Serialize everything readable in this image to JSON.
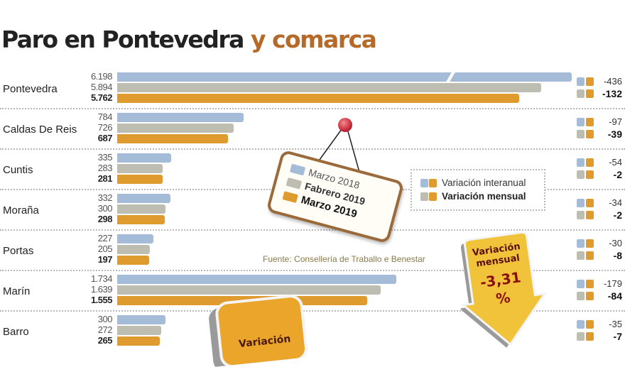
{
  "title": {
    "part1": "Paro en Pontevedra",
    "part2": "y comarca"
  },
  "legend": {
    "series": [
      "Marzo 2018",
      "Fabrero 2019",
      "Marzo 2019"
    ],
    "variation": [
      "Variación interanual",
      "Variación mensual"
    ]
  },
  "source": "Fuente: Consellería de Traballo e Benestar",
  "callout": {
    "label": "Variación mensual",
    "label_line1": "Variación",
    "label_line2": "mensual",
    "value": "-3,31",
    "unit": "%"
  },
  "callout2": {
    "label_line1": "Variación"
  },
  "colors": {
    "marzo2018": "#a5bcd9",
    "febrero2019": "#bdbdb1",
    "marzo2019": "#e09b2f",
    "title_accent": "#b66a2a"
  },
  "chart_data": {
    "type": "bar",
    "orientation": "horizontal",
    "title": "Paro en Pontevedra y comarca",
    "categories": [
      "Pontevedra",
      "Caldas De Reis",
      "Cuntis",
      "Moraña",
      "Portas",
      "Marín",
      "Barro"
    ],
    "series": [
      {
        "name": "Marzo 2018",
        "values": [
          6198,
          784,
          335,
          332,
          227,
          1734,
          300
        ],
        "labels": [
          "6.198",
          "784",
          "335",
          "332",
          "227",
          "1.734",
          "300"
        ]
      },
      {
        "name": "Fabrero 2019",
        "values": [
          5894,
          726,
          283,
          300,
          205,
          1639,
          272
        ],
        "labels": [
          "5.894",
          "726",
          "283",
          "300",
          "205",
          "1.639",
          "272"
        ]
      },
      {
        "name": "Marzo 2019",
        "values": [
          5762,
          687,
          281,
          298,
          197,
          1555,
          265
        ],
        "labels": [
          "5.762",
          "687",
          "281",
          "298",
          "197",
          "1.555",
          "265"
        ]
      }
    ],
    "variacion_interanual": [
      "-436",
      "-97",
      "-54",
      "-34",
      "-30",
      "-179",
      "-35"
    ],
    "variacion_mensual": [
      "-132",
      "-39",
      "-2",
      "-2",
      "-8",
      "-84",
      "-7"
    ],
    "broken_axis_category": "Pontevedra",
    "legend_position": "center"
  }
}
